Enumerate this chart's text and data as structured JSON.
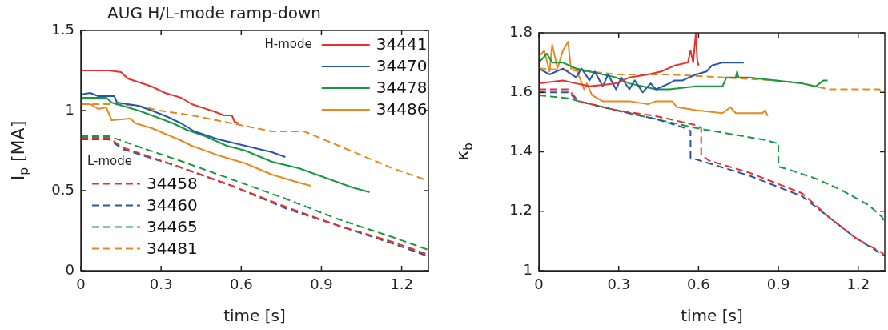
{
  "chart_data": [
    {
      "type": "line",
      "title": "AUG H/L-mode ramp-down",
      "xlabel": "time [s]",
      "ylabel": "I$_{p}$ [MA]",
      "xlim": [
        0,
        1.3
      ],
      "xticks": [
        0,
        0.3,
        0.6,
        0.9,
        1.2
      ],
      "ylim": [
        0,
        1.5
      ],
      "yticks": [
        0,
        0.5,
        1,
        1.5
      ],
      "grid": false,
      "legend": [
        "top right",
        "bottom left"
      ],
      "legend_title": [
        "H-mode",
        "L-mode"
      ],
      "series": [
        {
          "name": "34441",
          "color": "#e8312f",
          "line_style": "solid",
          "x": [
            0,
            0.105,
            0.15,
            0.175,
            0.265,
            0.315,
            0.375,
            0.415,
            0.505,
            0.535,
            0.565,
            0.575,
            0.59
          ],
          "values": [
            1.25,
            1.25,
            1.24,
            1.2,
            1.15,
            1.11,
            1.08,
            1.04,
            0.99,
            0.97,
            0.97,
            0.93,
            0.92
          ]
        },
        {
          "name": "34470",
          "color": "#2656a8",
          "line_style": "solid",
          "x": [
            0,
            0.035,
            0.065,
            0.125,
            0.135,
            0.215,
            0.265,
            0.325,
            0.375,
            0.425,
            0.515,
            0.615,
            0.715,
            0.765
          ],
          "values": [
            1.1,
            1.11,
            1.09,
            1.09,
            1.05,
            1.03,
            1.0,
            0.96,
            0.92,
            0.87,
            0.82,
            0.78,
            0.74,
            0.71
          ]
        },
        {
          "name": "34478",
          "color": "#169a3e",
          "line_style": "solid",
          "x": [
            0,
            0.095,
            0.115,
            0.215,
            0.265,
            0.345,
            0.395,
            0.465,
            0.545,
            0.615,
            0.715,
            0.815,
            0.915,
            1.015,
            1.08
          ],
          "values": [
            1.08,
            1.08,
            1.05,
            1.0,
            0.97,
            0.92,
            0.88,
            0.84,
            0.78,
            0.75,
            0.68,
            0.64,
            0.58,
            0.52,
            0.49
          ]
        },
        {
          "name": "34486",
          "color": "#e8891f",
          "line_style": "solid",
          "x": [
            0,
            0.035,
            0.065,
            0.095,
            0.115,
            0.185,
            0.205,
            0.265,
            0.365,
            0.415,
            0.515,
            0.615,
            0.715,
            0.815,
            0.86
          ],
          "values": [
            1.04,
            1.04,
            1.01,
            1.02,
            0.94,
            0.95,
            0.92,
            0.89,
            0.82,
            0.78,
            0.72,
            0.67,
            0.6,
            0.55,
            0.53
          ]
        },
        {
          "name": "34458",
          "color": "#e8312f",
          "line_style": "dashed",
          "x": [
            0,
            0.105,
            0.155,
            0.365,
            0.565,
            0.765,
            0.965,
            1.165,
            1.3
          ],
          "values": [
            0.83,
            0.83,
            0.77,
            0.65,
            0.53,
            0.4,
            0.28,
            0.18,
            0.1
          ]
        },
        {
          "name": "34460",
          "color": "#2656a8",
          "line_style": "dashed",
          "x": [
            0,
            0.105,
            0.155,
            0.365,
            0.565,
            0.765,
            0.965,
            1.165,
            1.3
          ],
          "values": [
            0.82,
            0.82,
            0.76,
            0.65,
            0.53,
            0.39,
            0.28,
            0.17,
            0.09
          ]
        },
        {
          "name": "34465",
          "color": "#169a3e",
          "line_style": "dashed",
          "x": [
            0,
            0.105,
            0.205,
            0.365,
            0.565,
            0.765,
            0.965,
            1.165,
            1.3
          ],
          "values": [
            0.84,
            0.84,
            0.78,
            0.69,
            0.57,
            0.45,
            0.32,
            0.21,
            0.13
          ]
        },
        {
          "name": "34481",
          "color": "#e8891f",
          "line_style": "dashed",
          "x": [
            0,
            0.115,
            0.215,
            0.295,
            0.415,
            0.565,
            0.715,
            0.835,
            0.965,
            1.165,
            1.285
          ],
          "values": [
            1.04,
            1.04,
            1.03,
            1.0,
            0.97,
            0.92,
            0.87,
            0.87,
            0.78,
            0.64,
            0.57
          ]
        }
      ]
    },
    {
      "type": "line",
      "xlabel": "time [s]",
      "ylabel": "κ$_{b}$",
      "xlim": [
        0,
        1.3
      ],
      "xticks": [
        0,
        0.3,
        0.6,
        0.9,
        1.2
      ],
      "ylim": [
        1,
        1.8
      ],
      "yticks": [
        1,
        1.2,
        1.4,
        1.6,
        1.8
      ],
      "grid": false,
      "legend": false,
      "series": [
        {
          "color": "#e8312f",
          "line_style": "solid",
          "x": [
            0,
            0.09,
            0.14,
            0.19,
            0.29,
            0.34,
            0.41,
            0.46,
            0.51,
            0.56,
            0.57,
            0.58,
            0.59,
            0.595,
            0.6
          ],
          "values": [
            1.63,
            1.64,
            1.63,
            1.62,
            1.63,
            1.65,
            1.66,
            1.67,
            1.69,
            1.7,
            1.74,
            1.7,
            1.8,
            1.71,
            1.69
          ]
        },
        {
          "color": "#2656a8",
          "line_style": "solid",
          "x": [
            0,
            0.04,
            0.09,
            0.14,
            0.16,
            0.19,
            0.21,
            0.24,
            0.26,
            0.29,
            0.31,
            0.34,
            0.36,
            0.39,
            0.42,
            0.44,
            0.49,
            0.51,
            0.54,
            0.59,
            0.63,
            0.65,
            0.69,
            0.72,
            0.77
          ],
          "values": [
            1.68,
            1.66,
            1.68,
            1.65,
            1.68,
            1.64,
            1.67,
            1.62,
            1.66,
            1.61,
            1.65,
            1.61,
            1.64,
            1.6,
            1.63,
            1.61,
            1.63,
            1.64,
            1.64,
            1.66,
            1.67,
            1.69,
            1.7,
            1.7,
            1.7
          ]
        },
        {
          "color": "#169a3e",
          "line_style": "solid",
          "x": [
            0,
            0.03,
            0.05,
            0.09,
            0.14,
            0.19,
            0.29,
            0.34,
            0.39,
            0.44,
            0.49,
            0.59,
            0.69,
            0.705,
            0.74,
            0.745,
            0.75,
            0.79,
            0.89,
            0.99,
            1.04,
            1.07,
            1.085
          ],
          "values": [
            1.7,
            1.73,
            1.7,
            1.7,
            1.68,
            1.67,
            1.65,
            1.63,
            1.62,
            1.61,
            1.61,
            1.62,
            1.62,
            1.65,
            1.65,
            1.67,
            1.65,
            1.65,
            1.64,
            1.63,
            1.62,
            1.64,
            1.64
          ]
        },
        {
          "color": "#e8891f",
          "line_style": "solid",
          "x": [
            0,
            0.02,
            0.04,
            0.05,
            0.07,
            0.09,
            0.11,
            0.12,
            0.14,
            0.17,
            0.18,
            0.2,
            0.24,
            0.34,
            0.41,
            0.44,
            0.5,
            0.52,
            0.59,
            0.69,
            0.72,
            0.74,
            0.84,
            0.85,
            0.86
          ],
          "values": [
            1.72,
            1.74,
            1.67,
            1.76,
            1.68,
            1.74,
            1.77,
            1.68,
            1.68,
            1.61,
            1.63,
            1.59,
            1.57,
            1.57,
            1.56,
            1.57,
            1.57,
            1.55,
            1.54,
            1.53,
            1.55,
            1.53,
            1.53,
            1.54,
            1.52
          ]
        },
        {
          "color": "#e8312f",
          "line_style": "dashed",
          "x": [
            0,
            0.11,
            0.15,
            0.29,
            0.44,
            0.59,
            0.61,
            0.61,
            0.64,
            0.79,
            0.99,
            1.09,
            1.19,
            1.29,
            1.3
          ],
          "values": [
            1.61,
            1.61,
            1.57,
            1.54,
            1.52,
            1.49,
            1.48,
            1.39,
            1.37,
            1.33,
            1.26,
            1.18,
            1.11,
            1.06,
            1.05
          ]
        },
        {
          "color": "#2656a8",
          "line_style": "dashed",
          "x": [
            0,
            0.11,
            0.15,
            0.29,
            0.44,
            0.55,
            0.57,
            0.57,
            0.79,
            0.99,
            1.09,
            1.19,
            1.3
          ],
          "values": [
            1.6,
            1.6,
            1.57,
            1.54,
            1.51,
            1.48,
            1.47,
            1.38,
            1.32,
            1.25,
            1.18,
            1.11,
            1.05
          ]
        },
        {
          "color": "#169a3e",
          "line_style": "dashed",
          "x": [
            0,
            0.11,
            0.15,
            0.29,
            0.44,
            0.59,
            0.85,
            0.89,
            0.9,
            0.9,
            0.94,
            1.04,
            1.14,
            1.24,
            1.29,
            1.3
          ],
          "values": [
            1.59,
            1.58,
            1.57,
            1.54,
            1.51,
            1.48,
            1.44,
            1.43,
            1.43,
            1.35,
            1.34,
            1.31,
            1.27,
            1.22,
            1.18,
            1.16
          ]
        },
        {
          "color": "#e8891f",
          "line_style": "dashed",
          "x": [
            0,
            0.19,
            0.29,
            0.49,
            0.69,
            0.89,
            0.99,
            1.09,
            1.19,
            1.28,
            1.29
          ],
          "values": [
            1.68,
            1.67,
            1.66,
            1.66,
            1.65,
            1.64,
            1.63,
            1.61,
            1.61,
            1.61,
            1.59
          ]
        }
      ]
    }
  ]
}
